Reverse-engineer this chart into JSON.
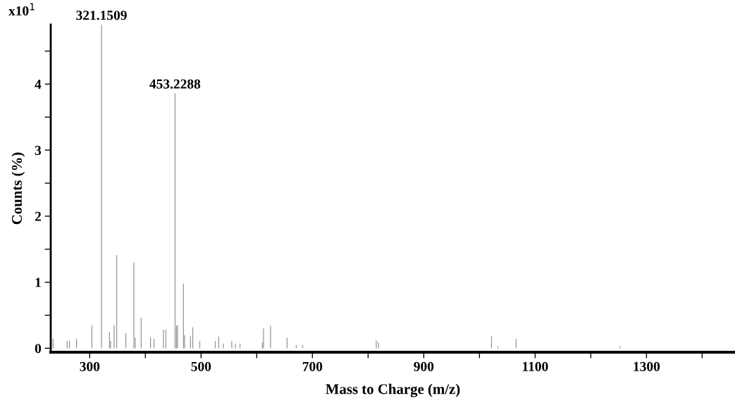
{
  "chart_data": {
    "type": "bar",
    "xlabel": "Mass to Charge (m/z)",
    "ylabel": "Counts (%)",
    "x": [
      234.2,
      259.5,
      263.7,
      276.3,
      303.8,
      321.1509,
      335.4,
      337.5,
      343.8,
      348.5,
      365,
      379.3,
      381.8,
      392.4,
      409.2,
      415.6,
      432.4,
      436.7,
      453.2288,
      455.7,
      457.7,
      468.3,
      470.4,
      481,
      485.2,
      497.8,
      525.3,
      531.6,
      540,
      555.2,
      561.5,
      570,
      610.1,
      612.2,
      624.8,
      654.4,
      670.9,
      682.7,
      814.7,
      818.5,
      1021.5,
      1033,
      1065.8,
      1252.3
    ],
    "values": [
      0.14,
      0.11,
      0.11,
      0.14,
      0.35,
      4.9,
      0.25,
      0.11,
      0.35,
      1.41,
      0.23,
      1.3,
      0.16,
      0.46,
      0.16,
      0.14,
      0.28,
      0.28,
      3.86,
      0.34,
      0.35,
      0.98,
      0.2,
      0.18,
      0.32,
      0.11,
      0.11,
      0.18,
      0.07,
      0.11,
      0.07,
      0.07,
      0.09,
      0.3,
      0.34,
      0.16,
      0.05,
      0.05,
      0.12,
      0.09,
      0.18,
      0.03,
      0.14,
      0.03
    ],
    "color": "#808080",
    "xlim": [
      230,
      1459
    ],
    "ylim": [
      -0.06,
      4.9
    ],
    "xticks": [
      300,
      {
        "value": 400,
        "label": null
      },
      500,
      {
        "value": 600,
        "label": null
      },
      700,
      {
        "value": 800,
        "label": null
      },
      900,
      {
        "value": 1000,
        "label": null
      },
      1100,
      {
        "value": 1200,
        "label": null
      },
      1300,
      {
        "value": 1400,
        "label": null
      }
    ],
    "yticks": [
      0,
      {
        "value": 0.5,
        "label": null
      },
      1,
      {
        "value": 1.5,
        "label": null
      },
      2,
      {
        "value": 2.5,
        "label": null
      },
      3,
      {
        "value": 3.5,
        "label": null
      },
      4,
      {
        "value": 4.5,
        "label": null
      }
    ],
    "annotations": [
      "x10$^{1}$",
      {
        "text": "321.1509",
        "x": 321.1509,
        "y": 4.9
      },
      {
        "text": "453.2288",
        "x": 453.2288,
        "y": 3.86
      }
    ],
    "grid": false,
    "legend": false
  }
}
